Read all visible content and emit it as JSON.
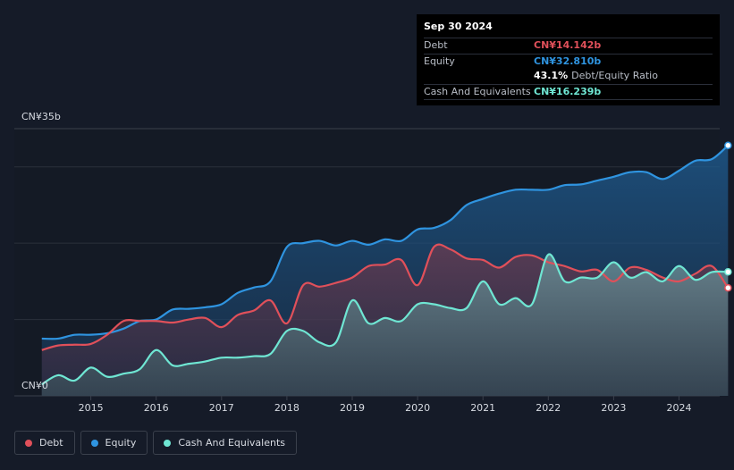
{
  "tooltip": {
    "date": "Sep 30 2024",
    "debt_label": "Debt",
    "debt_value": "CN¥14.142b",
    "equity_label": "Equity",
    "equity_value": "CN¥32.810b",
    "ratio_value": "43.1%",
    "ratio_label": "Debt/Equity Ratio",
    "cash_label": "Cash And Equivalents",
    "cash_value": "CN¥16.239b"
  },
  "legend": {
    "debt": "Debt",
    "equity": "Equity",
    "cash": "Cash And Equivalents"
  },
  "colors": {
    "debt": "#e0505a",
    "equity": "#2f94e0",
    "cash": "#6fe6d3"
  },
  "chart_data": {
    "type": "area",
    "x_ticks": [
      "2015",
      "2016",
      "2017",
      "2018",
      "2019",
      "2020",
      "2021",
      "2022",
      "2023",
      "2024"
    ],
    "y_tick_labels": [
      "CN¥35b",
      "CN¥0"
    ],
    "ylim": [
      0,
      35
    ],
    "grid": true,
    "series": [
      {
        "name": "Equity",
        "key": "equity",
        "points": [
          [
            2014.25,
            7.5
          ],
          [
            2014.5,
            7.5
          ],
          [
            2014.75,
            8.0
          ],
          [
            2015.0,
            8.0
          ],
          [
            2015.25,
            8.2
          ],
          [
            2015.5,
            8.8
          ],
          [
            2015.75,
            9.8
          ],
          [
            2016.0,
            10.0
          ],
          [
            2016.25,
            11.3
          ],
          [
            2016.5,
            11.4
          ],
          [
            2016.75,
            11.6
          ],
          [
            2017.0,
            12.0
          ],
          [
            2017.25,
            13.5
          ],
          [
            2017.5,
            14.2
          ],
          [
            2017.75,
            15.0
          ],
          [
            2018.0,
            19.5
          ],
          [
            2018.25,
            20.0
          ],
          [
            2018.5,
            20.3
          ],
          [
            2018.75,
            19.7
          ],
          [
            2019.0,
            20.3
          ],
          [
            2019.25,
            19.8
          ],
          [
            2019.5,
            20.5
          ],
          [
            2019.75,
            20.3
          ],
          [
            2020.0,
            21.8
          ],
          [
            2020.25,
            22.0
          ],
          [
            2020.5,
            23.0
          ],
          [
            2020.75,
            25.0
          ],
          [
            2021.0,
            25.8
          ],
          [
            2021.25,
            26.5
          ],
          [
            2021.5,
            27.0
          ],
          [
            2021.75,
            27.0
          ],
          [
            2022.0,
            27.0
          ],
          [
            2022.25,
            27.6
          ],
          [
            2022.5,
            27.7
          ],
          [
            2022.75,
            28.2
          ],
          [
            2023.0,
            28.7
          ],
          [
            2023.25,
            29.3
          ],
          [
            2023.5,
            29.3
          ],
          [
            2023.75,
            28.4
          ],
          [
            2024.0,
            29.5
          ],
          [
            2024.25,
            30.8
          ],
          [
            2024.5,
            31.0
          ],
          [
            2024.75,
            32.81
          ]
        ]
      },
      {
        "name": "Debt",
        "key": "debt",
        "points": [
          [
            2014.25,
            6.0
          ],
          [
            2014.5,
            6.6
          ],
          [
            2014.75,
            6.7
          ],
          [
            2015.0,
            6.8
          ],
          [
            2015.25,
            8.0
          ],
          [
            2015.5,
            9.8
          ],
          [
            2015.75,
            9.8
          ],
          [
            2016.0,
            9.8
          ],
          [
            2016.25,
            9.6
          ],
          [
            2016.5,
            10.0
          ],
          [
            2016.75,
            10.2
          ],
          [
            2017.0,
            9.0
          ],
          [
            2017.25,
            10.6
          ],
          [
            2017.5,
            11.2
          ],
          [
            2017.75,
            12.5
          ],
          [
            2018.0,
            9.5
          ],
          [
            2018.25,
            14.5
          ],
          [
            2018.5,
            14.3
          ],
          [
            2018.75,
            14.8
          ],
          [
            2019.0,
            15.5
          ],
          [
            2019.25,
            17.0
          ],
          [
            2019.5,
            17.2
          ],
          [
            2019.75,
            17.8
          ],
          [
            2020.0,
            14.5
          ],
          [
            2020.25,
            19.5
          ],
          [
            2020.5,
            19.2
          ],
          [
            2020.75,
            18.0
          ],
          [
            2021.0,
            17.8
          ],
          [
            2021.25,
            16.8
          ],
          [
            2021.5,
            18.2
          ],
          [
            2021.75,
            18.4
          ],
          [
            2022.0,
            17.5
          ],
          [
            2022.25,
            17.0
          ],
          [
            2022.5,
            16.3
          ],
          [
            2022.75,
            16.5
          ],
          [
            2023.0,
            15.0
          ],
          [
            2023.25,
            16.8
          ],
          [
            2023.5,
            16.5
          ],
          [
            2023.75,
            15.5
          ],
          [
            2024.0,
            15.0
          ],
          [
            2024.25,
            16.0
          ],
          [
            2024.5,
            17.0
          ],
          [
            2024.75,
            14.142
          ]
        ]
      },
      {
        "name": "Cash And Equivalents",
        "key": "cash",
        "points": [
          [
            2014.25,
            1.5
          ],
          [
            2014.5,
            2.7
          ],
          [
            2014.75,
            2.0
          ],
          [
            2015.0,
            3.7
          ],
          [
            2015.25,
            2.5
          ],
          [
            2015.5,
            2.9
          ],
          [
            2015.75,
            3.5
          ],
          [
            2016.0,
            6.0
          ],
          [
            2016.25,
            4.0
          ],
          [
            2016.5,
            4.2
          ],
          [
            2016.75,
            4.5
          ],
          [
            2017.0,
            5.0
          ],
          [
            2017.25,
            5.0
          ],
          [
            2017.5,
            5.2
          ],
          [
            2017.75,
            5.5
          ],
          [
            2018.0,
            8.5
          ],
          [
            2018.25,
            8.5
          ],
          [
            2018.5,
            7.0
          ],
          [
            2018.75,
            7.0
          ],
          [
            2019.0,
            12.5
          ],
          [
            2019.25,
            9.5
          ],
          [
            2019.5,
            10.2
          ],
          [
            2019.75,
            9.8
          ],
          [
            2020.0,
            12.0
          ],
          [
            2020.25,
            12.0
          ],
          [
            2020.5,
            11.5
          ],
          [
            2020.75,
            11.5
          ],
          [
            2021.0,
            15.0
          ],
          [
            2021.25,
            12.0
          ],
          [
            2021.5,
            12.8
          ],
          [
            2021.75,
            12.0
          ],
          [
            2022.0,
            18.5
          ],
          [
            2022.25,
            15.0
          ],
          [
            2022.5,
            15.5
          ],
          [
            2022.75,
            15.5
          ],
          [
            2023.0,
            17.5
          ],
          [
            2023.25,
            15.5
          ],
          [
            2023.5,
            16.2
          ],
          [
            2023.75,
            15.0
          ],
          [
            2024.0,
            17.0
          ],
          [
            2024.25,
            15.2
          ],
          [
            2024.5,
            16.2
          ],
          [
            2024.75,
            16.239
          ]
        ]
      }
    ]
  }
}
